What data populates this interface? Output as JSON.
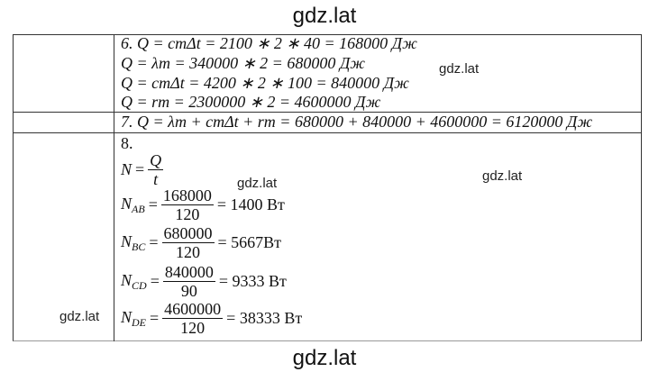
{
  "header": {
    "title": "gdz.lat"
  },
  "table": {
    "rows": [
      {
        "lines": [
          "6. Q = cmΔt = 2100 ∗ 2 ∗ 40 = 168000 Дж",
          "Q = λm = 340000 ∗ 2 = 680000 Дж",
          "Q = cmΔt = 4200 ∗ 2 ∗ 100 = 840000 Дж",
          "Q = rm = 2300000 ∗ 2 = 4600000 Дж"
        ]
      },
      {
        "lines": [
          "7. Q = λm + cmΔt + rm = 680000 + 840000 + 4600000 = 6120000 Дж"
        ]
      },
      {
        "label": "8.",
        "formulas": [
          {
            "symbol": "N",
            "equals": "=",
            "numerator": "Q",
            "denominator": "t"
          },
          {
            "symbol": "N",
            "subscript": "AB",
            "equals": "=",
            "numerator": "168000",
            "denominator": "120",
            "result": "= 1400 Вт"
          },
          {
            "symbol": "N",
            "subscript": "BC",
            "equals": "=",
            "numerator": "680000",
            "denominator": "120",
            "result": "= 5667Вт"
          },
          {
            "symbol": "N",
            "subscript": "CD",
            "equals": "=",
            "numerator": "840000",
            "denominator": "90",
            "result": "= 9333 Вт"
          },
          {
            "symbol": "N",
            "subscript": "DE",
            "equals": "=",
            "numerator": "4600000",
            "denominator": "120",
            "result": "= 38333 Вт"
          }
        ]
      }
    ]
  },
  "watermarks": [
    "gdz.lat",
    "gdz.lat",
    "gdz.lat",
    "gdz.lat"
  ],
  "footer": {
    "text": "gdz.lat"
  }
}
